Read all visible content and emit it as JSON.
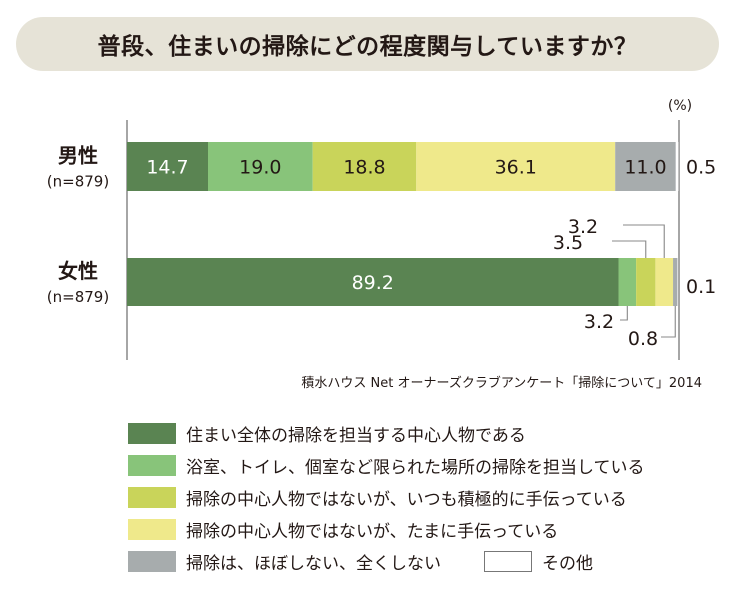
{
  "title": "普段、住まいの掃除にどの程度関与していますか？",
  "source": "積水ハウス Net オーナーズクラブアンケート「掃除について」2014",
  "colors": {
    "banner": "#e6e3d7",
    "series": [
      "#5a8452",
      "#88c47a",
      "#c9d45a",
      "#efe98b",
      "#a7acad",
      "#ffffff"
    ]
  },
  "chart_data": {
    "type": "bar",
    "orientation": "horizontal",
    "stacked": true,
    "unit_label": "(%)",
    "xlim": [
      0,
      100
    ],
    "grid": false,
    "legend_position": "bottom",
    "categories": [
      {
        "name": "男性",
        "sample": "(n=879)"
      },
      {
        "name": "女性",
        "sample": "(n=879)"
      }
    ],
    "series": [
      {
        "name": "住まい全体の掃除を担当する中心人物である",
        "values": [
          14.7,
          89.2
        ]
      },
      {
        "name": "浴室、トイレ、個室など限られた場所の掃除を担当している",
        "values": [
          19.0,
          3.2
        ]
      },
      {
        "name": "掃除の中心人物ではないが、いつも積極的に手伝っている",
        "values": [
          18.8,
          3.5
        ]
      },
      {
        "name": "掃除の中心人物ではないが、たまに手伝っている",
        "values": [
          36.1,
          3.2
        ]
      },
      {
        "name": "掃除は、ほぼしない、全くしない",
        "values": [
          11.0,
          0.8
        ]
      },
      {
        "name": "その他",
        "values": [
          0.5,
          0.1
        ]
      }
    ],
    "data_labels": [
      [
        "14.7",
        "19.0",
        "18.8",
        "36.1",
        "11.0",
        "0.5"
      ],
      [
        "89.2",
        "3.2",
        "3.5",
        "3.2",
        "0.8",
        "0.1"
      ]
    ]
  }
}
